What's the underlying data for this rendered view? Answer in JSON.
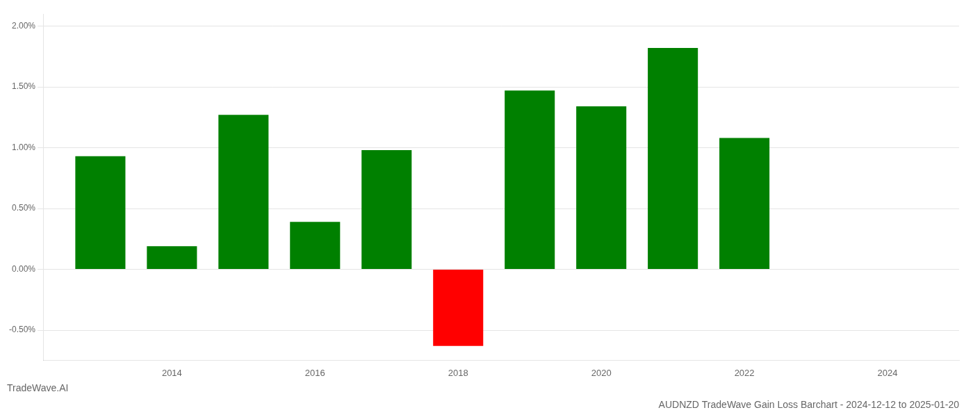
{
  "chart_data": {
    "type": "bar",
    "title": "AUDNZD TradeWave Gain Loss Barchart - 2024-12-12 to 2025-01-20",
    "subtitle": "TradeWave.AI",
    "x": [
      2013,
      2014,
      2015,
      2016,
      2017,
      2018,
      2019,
      2020,
      2021,
      2022,
      2023
    ],
    "values": [
      0.93,
      0.19,
      1.27,
      0.39,
      0.98,
      -0.63,
      1.47,
      1.34,
      1.82,
      1.08,
      0.0
    ],
    "colors": [
      "#008000",
      "#008000",
      "#008000",
      "#008000",
      "#008000",
      "#ff0000",
      "#008000",
      "#008000",
      "#008000",
      "#008000",
      "#008000"
    ],
    "xlim": [
      2012.2,
      2025.0
    ],
    "xticks": [
      2014,
      2016,
      2018,
      2020,
      2022,
      2024
    ],
    "ylim": [
      -0.75,
      2.1
    ],
    "yticks": [
      {
        "value": -0.5,
        "label": "-0.50%"
      },
      {
        "value": 0.0,
        "label": "0.00%"
      },
      {
        "value": 0.5,
        "label": "0.50%"
      },
      {
        "value": 1.0,
        "label": "1.00%"
      },
      {
        "value": 1.5,
        "label": "1.50%"
      },
      {
        "value": 2.0,
        "label": "2.00%"
      }
    ],
    "grid": true
  }
}
